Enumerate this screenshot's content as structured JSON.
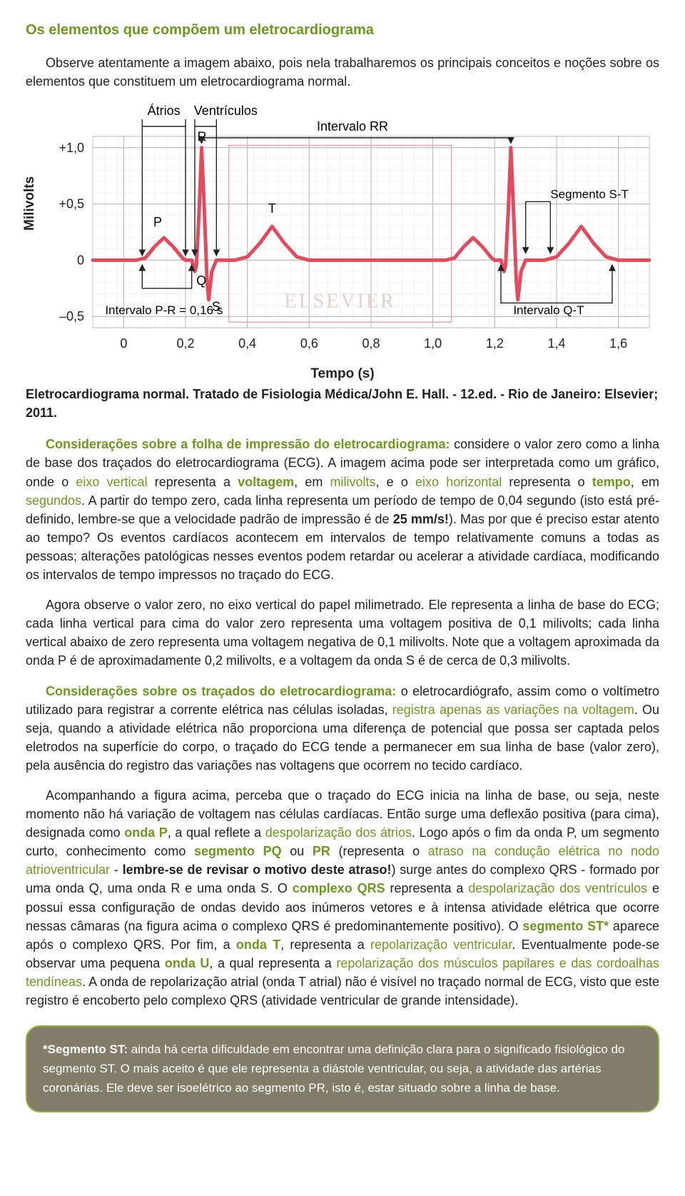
{
  "title": "Os elementos que compõem um eletrocardiograma",
  "intro": "Observe atentamente a imagem abaixo, pois nela trabalharemos os principais conceitos e noções sobre os elementos que constituem um eletrocardiograma normal.",
  "figure": {
    "ylabel": "Milivolts",
    "xlabel": "Tempo (s)",
    "yticks": [
      {
        "v": 1.0,
        "label": "+1,0"
      },
      {
        "v": 0.5,
        "label": "+0,5"
      },
      {
        "v": 0.0,
        "label": "0"
      },
      {
        "v": -0.5,
        "label": "–0,5"
      }
    ],
    "xticks": [
      {
        "v": 0.0,
        "label": "0"
      },
      {
        "v": 0.2,
        "label": "0,2"
      },
      {
        "v": 0.4,
        "label": "0,4"
      },
      {
        "v": 0.6,
        "label": "0,6"
      },
      {
        "v": 0.8,
        "label": "0,8"
      },
      {
        "v": 1.0,
        "label": "1,0"
      },
      {
        "v": 1.2,
        "label": "1,2"
      },
      {
        "v": 1.4,
        "label": "1,4"
      },
      {
        "v": 1.6,
        "label": "1,6"
      }
    ],
    "x_range": [
      -0.1,
      1.7
    ],
    "y_range": [
      -0.6,
      1.1
    ],
    "minor_x_step": 0.04,
    "minor_y_step": 0.1,
    "bg_color": "#ffffff",
    "minor_grid_color": "#ececec",
    "major_grid_color": "#bdbdbd",
    "ecg_color": "#e34a5c",
    "ecg_width": 5,
    "watermark_box_color": "#e7a9a6",
    "watermark_text": "ELSEVIER",
    "top_labels": {
      "atrios": "Átrios",
      "ventriculos": "Ventrículos",
      "intervalo_rr": "Intervalo RR",
      "segmento_st": "Segmento S-T"
    },
    "wave_letters": {
      "P": "P",
      "Q": "Q",
      "R": "R",
      "S": "S",
      "T": "T"
    },
    "bottom_labels": {
      "pr": "Intervalo P-R = 0,16 s",
      "qt": "Intervalo Q-T"
    },
    "ecg_points": [
      [
        -0.1,
        0.0
      ],
      [
        0.04,
        0.0
      ],
      [
        0.07,
        0.02
      ],
      [
        0.1,
        0.12
      ],
      [
        0.13,
        0.2
      ],
      [
        0.16,
        0.12
      ],
      [
        0.19,
        0.02
      ],
      [
        0.2,
        0.0
      ],
      [
        0.22,
        0.0
      ],
      [
        0.23,
        -0.1
      ],
      [
        0.235,
        -0.05
      ],
      [
        0.245,
        0.5
      ],
      [
        0.252,
        1.0
      ],
      [
        0.26,
        0.5
      ],
      [
        0.27,
        -0.2
      ],
      [
        0.275,
        -0.35
      ],
      [
        0.285,
        -0.1
      ],
      [
        0.3,
        0.0
      ],
      [
        0.36,
        0.0
      ],
      [
        0.4,
        0.03
      ],
      [
        0.44,
        0.15
      ],
      [
        0.48,
        0.3
      ],
      [
        0.52,
        0.15
      ],
      [
        0.56,
        0.03
      ],
      [
        0.6,
        0.0
      ],
      [
        1.0,
        0.0
      ],
      [
        1.04,
        0.0
      ],
      [
        1.07,
        0.02
      ],
      [
        1.1,
        0.12
      ],
      [
        1.13,
        0.2
      ],
      [
        1.16,
        0.12
      ],
      [
        1.19,
        0.02
      ],
      [
        1.2,
        0.0
      ],
      [
        1.22,
        0.0
      ],
      [
        1.23,
        -0.1
      ],
      [
        1.235,
        -0.05
      ],
      [
        1.245,
        0.5
      ],
      [
        1.252,
        1.0
      ],
      [
        1.26,
        0.5
      ],
      [
        1.27,
        -0.2
      ],
      [
        1.275,
        -0.35
      ],
      [
        1.285,
        -0.1
      ],
      [
        1.3,
        0.0
      ],
      [
        1.36,
        0.0
      ],
      [
        1.4,
        0.03
      ],
      [
        1.44,
        0.15
      ],
      [
        1.48,
        0.3
      ],
      [
        1.52,
        0.15
      ],
      [
        1.56,
        0.03
      ],
      [
        1.6,
        0.0
      ],
      [
        1.7,
        0.0
      ]
    ]
  },
  "caption": "Eletrocardiograma normal. Tratado de Fisiologia Médica/John E. Hall. - 12.ed. - Rio de Janeiro: Elsevier; 2011.",
  "para1": {
    "lead": "Considerações sobre a folha de impressão do eletrocardiograma:",
    "t1": " considere o valor zero como a linha de base dos traçados do eletrocardiograma (ECG). A imagem acima pode ser interpretada como um gráfico, onde o ",
    "g1": "eixo vertical",
    "t2": " representa a ",
    "g2": "voltagem",
    "t3": ", em ",
    "g3": "milivolts",
    "t4": ", e o ",
    "g4": "eixo horizontal",
    "t5": " representa o ",
    "g5": "tempo",
    "t6": ", em ",
    "g6": "segundos",
    "t7": ". A partir do tempo zero, cada linha representa um período de tempo de 0,04 segundo (isto está pré-definido, lembre-se que a velocidade padrão de impressão é de ",
    "b1": "25 mm/s!",
    "t8": "). Mas por que é preciso estar atento ao tempo? Os eventos cardíacos acontecem em intervalos de tempo relativamente comuns a todas as pessoas; alterações patológicas nesses eventos podem retardar ou acelerar a atividade cardíaca, modificando os intervalos de tempo impressos no traçado do ECG."
  },
  "para2": "Agora observe o valor zero, no eixo vertical do papel milimetrado. Ele representa a linha de base do ECG; cada linha vertical para cima do valor zero representa uma voltagem positiva de 0,1 milivolts; cada linha vertical abaixo de zero representa uma voltagem negativa de 0,1 milivolts. Note que a voltagem aproximada da onda P é de aproximadamente 0,2 milivolts, e a voltagem da onda S é de cerca de 0,3 milivolts.",
  "para3": {
    "lead": "Considerações sobre os traçados do eletrocardiograma:",
    "t1": " o eletrocardiógrafo, assim como o voltímetro utilizado para registrar a corrente elétrica nas células isoladas, ",
    "g1": "registra apenas as variações na voltagem",
    "t2": ". Ou seja, quando a atividade elétrica não proporciona uma diferença de potencial que possa ser captada pelos eletrodos na superfície do corpo, o traçado do ECG tende a permanecer em sua linha de base (valor zero), pela ausência do registro das variações nas voltagens que ocorrem no tecido cardíaco."
  },
  "para4": {
    "t1": "Acompanhando a figura acima, perceba que o traçado do ECG inicia na linha de base, ou seja, neste momento não há variação de voltagem nas células cardíacas. Então surge uma deflexão positiva (para cima), designada como ",
    "g1": "onda P",
    "t2": ", a qual reflete a ",
    "g2": "despolarização dos átrios",
    "t3": ". Logo após o fim da onda P, um segmento curto, conhecimento como ",
    "g3": "segmento PQ",
    "t4": " ou ",
    "g4": "PR",
    "t5": " (representa o ",
    "g5": "atraso na condução elétrica no nodo atrioventricular",
    "t6": " - ",
    "b1": "lembre-se de revisar o motivo deste atraso!",
    "t7": ") surge antes do complexo QRS - formado por uma onda Q, uma onda R e uma onda S. O ",
    "g6": "complexo QRS",
    "t8": " representa a ",
    "g7": "despolarização dos ventrículos",
    "t9": " e possui essa configuração de ondas devido aos inúmeros vetores e à intensa atividade elétrica que ocorre nessas câmaras (na figura acima o complexo QRS é predominantemente positivo). O ",
    "g8": "segmento ST*",
    "t10": " aparece após o complexo QRS. Por fim, a ",
    "g9": "onda T",
    "t11": ", representa a ",
    "g10": "repolarização ventricular",
    "t12": ". Eventualmente pode-se observar uma pequena ",
    "g11": "onda U",
    "t13": ", a qual representa a ",
    "g12": "repolarização dos músculos papilares e das cordoalhas tendíneas",
    "t14": ". A onda de repolarização atrial (onda T atrial) não é visível no traçado normal de ECG, visto que este registro é encoberto pelo complexo QRS (atividade ventricular de grande intensidade)."
  },
  "notebox": {
    "b1": "*Segmento ST:",
    "t1": " ainda há certa dificuldade em encontrar uma definição clara para o significado fisiológico do segmento ST. O mais aceito é que ele representa a diástole ventricular, ou seja, a atividade das artérias coronárias. Ele deve ser isoelétrico ao segmento PR, isto é, estar situado sobre a linha de base."
  }
}
